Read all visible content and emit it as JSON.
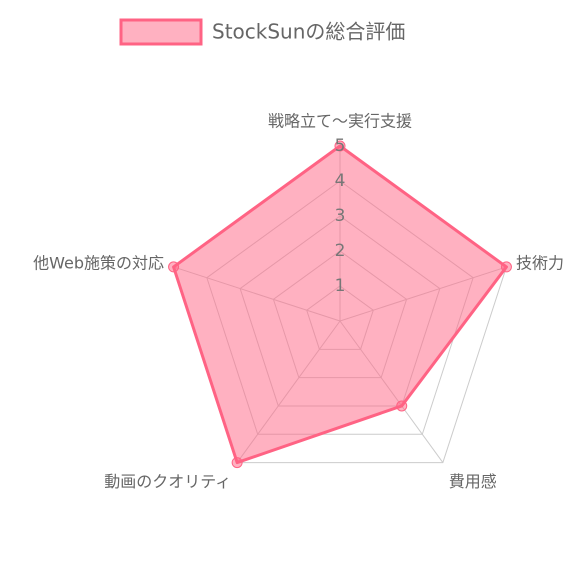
{
  "chart_data": {
    "type": "radar",
    "categories": [
      "戦略立て〜実行支援",
      "技術力",
      "費用感",
      "動画のクオリティ",
      "他Web施策の対応"
    ],
    "series": [
      {
        "name": "StockSunの総合評価",
        "color": "#ff6384",
        "values": [
          5,
          5,
          3,
          5,
          5
        ]
      }
    ],
    "ylim": [
      0,
      5
    ],
    "yticks": [
      1,
      2,
      3,
      4,
      5
    ],
    "grid": true,
    "legend": "top"
  }
}
